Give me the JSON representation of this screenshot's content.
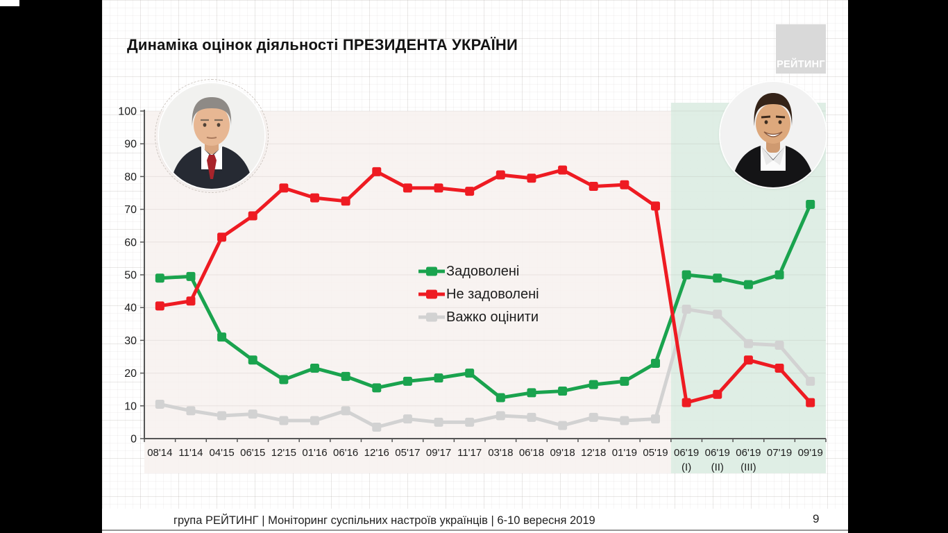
{
  "slide": {
    "title": "Динаміка оцінок діяльності ПРЕЗИДЕНТА УКРАЇНИ"
  },
  "logo": {
    "text": "РЕЙТИНГ"
  },
  "photos": {
    "left": "poroshenko-portrait",
    "right": "zelensky-portrait"
  },
  "footer": {
    "text": "група РЕЙТИНГ | Моніторинг суспільних настроїв українців | 6-10 вересня 2019",
    "page": "9"
  },
  "chart_data": {
    "type": "line",
    "title": "Динаміка оцінок діяльності ПРЕЗИДЕНТА УКРАЇНИ",
    "categories": [
      "08'14",
      "11'14",
      "04'15",
      "06'15",
      "12'15",
      "01'16",
      "06'16",
      "12'16",
      "05'17",
      "09'17",
      "11'17",
      "03'18",
      "06'18",
      "09'18",
      "12'18",
      "01'19",
      "05'19",
      "06'19 (I)",
      "06'19 (II)",
      "06'19 (III)",
      "07'19",
      "09'19"
    ],
    "series": [
      {
        "name": "Задоволені",
        "color": "#1AA34E",
        "values": [
          49,
          49.5,
          31,
          24,
          18,
          21.5,
          19,
          15.5,
          17.5,
          18.5,
          20,
          12.5,
          14,
          14.5,
          16.5,
          17.5,
          23,
          50,
          49,
          47,
          50,
          71.5
        ]
      },
      {
        "name": "Не задоволені",
        "color": "#EE1B22",
        "values": [
          40.5,
          42,
          61.5,
          68,
          76.5,
          73.5,
          72.5,
          81.5,
          76.5,
          76.5,
          75.5,
          80.5,
          79.5,
          82,
          77,
          77.5,
          71,
          11,
          13.5,
          24,
          21.5,
          11
        ]
      },
      {
        "name": "Важко оцінити",
        "color": "#D2D2D2",
        "values": [
          10.5,
          8.5,
          7,
          7.5,
          5.5,
          5.5,
          8.5,
          3.5,
          6,
          5,
          5,
          7,
          6.5,
          4,
          6.5,
          5.5,
          6,
          39.5,
          38,
          29,
          28.5,
          17.5
        ]
      }
    ],
    "ylim": [
      0,
      100
    ],
    "ytick_step": 10,
    "grid": true,
    "legend_position": "center",
    "plot_bg": "#F7F2EF",
    "highlight_region": {
      "start_category": "06'19 (I)",
      "end_category": "09'19",
      "color": "#DCEDE3"
    }
  }
}
